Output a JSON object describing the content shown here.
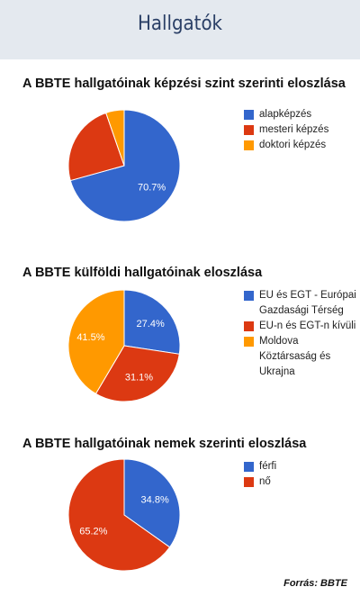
{
  "header": {
    "title": "Hallgatók"
  },
  "colors": {
    "blue": "#3366cc",
    "red": "#dc3912",
    "orange": "#ff9900"
  },
  "chart_data": [
    {
      "type": "pie",
      "title": "A BBTE hallgatóinak képzési szint szerinti eloszlása",
      "legend_position": "right",
      "categories": [
        "alapképzés",
        "mesteri képzés",
        "doktori képzés"
      ],
      "values": [
        70.7,
        24.0,
        5.3
      ],
      "labels": [
        "70.7%",
        "",
        ""
      ],
      "colors": [
        "#3366cc",
        "#dc3912",
        "#ff9900"
      ]
    },
    {
      "type": "pie",
      "title": "A BBTE külföldi hallgatóinak eloszlása",
      "legend_position": "right",
      "categories": [
        "EU és EGT - Európai Gazdasági Térség",
        "EU-n és EGT-n kívüli",
        "Moldova Köztársaság és Ukrajna"
      ],
      "values": [
        27.4,
        31.1,
        41.5
      ],
      "labels": [
        "27.4%",
        "31.1%",
        "41.5%"
      ],
      "colors": [
        "#3366cc",
        "#dc3912",
        "#ff9900"
      ]
    },
    {
      "type": "pie",
      "title": "A BBTE hallgatóinak nemek szerinti eloszlása",
      "legend_position": "right",
      "categories": [
        "férfi",
        "nő"
      ],
      "values": [
        34.8,
        65.2
      ],
      "labels": [
        "34.8%",
        "65.2%"
      ],
      "colors": [
        "#3366cc",
        "#dc3912"
      ]
    }
  ],
  "source": "Forrás: BBTE"
}
